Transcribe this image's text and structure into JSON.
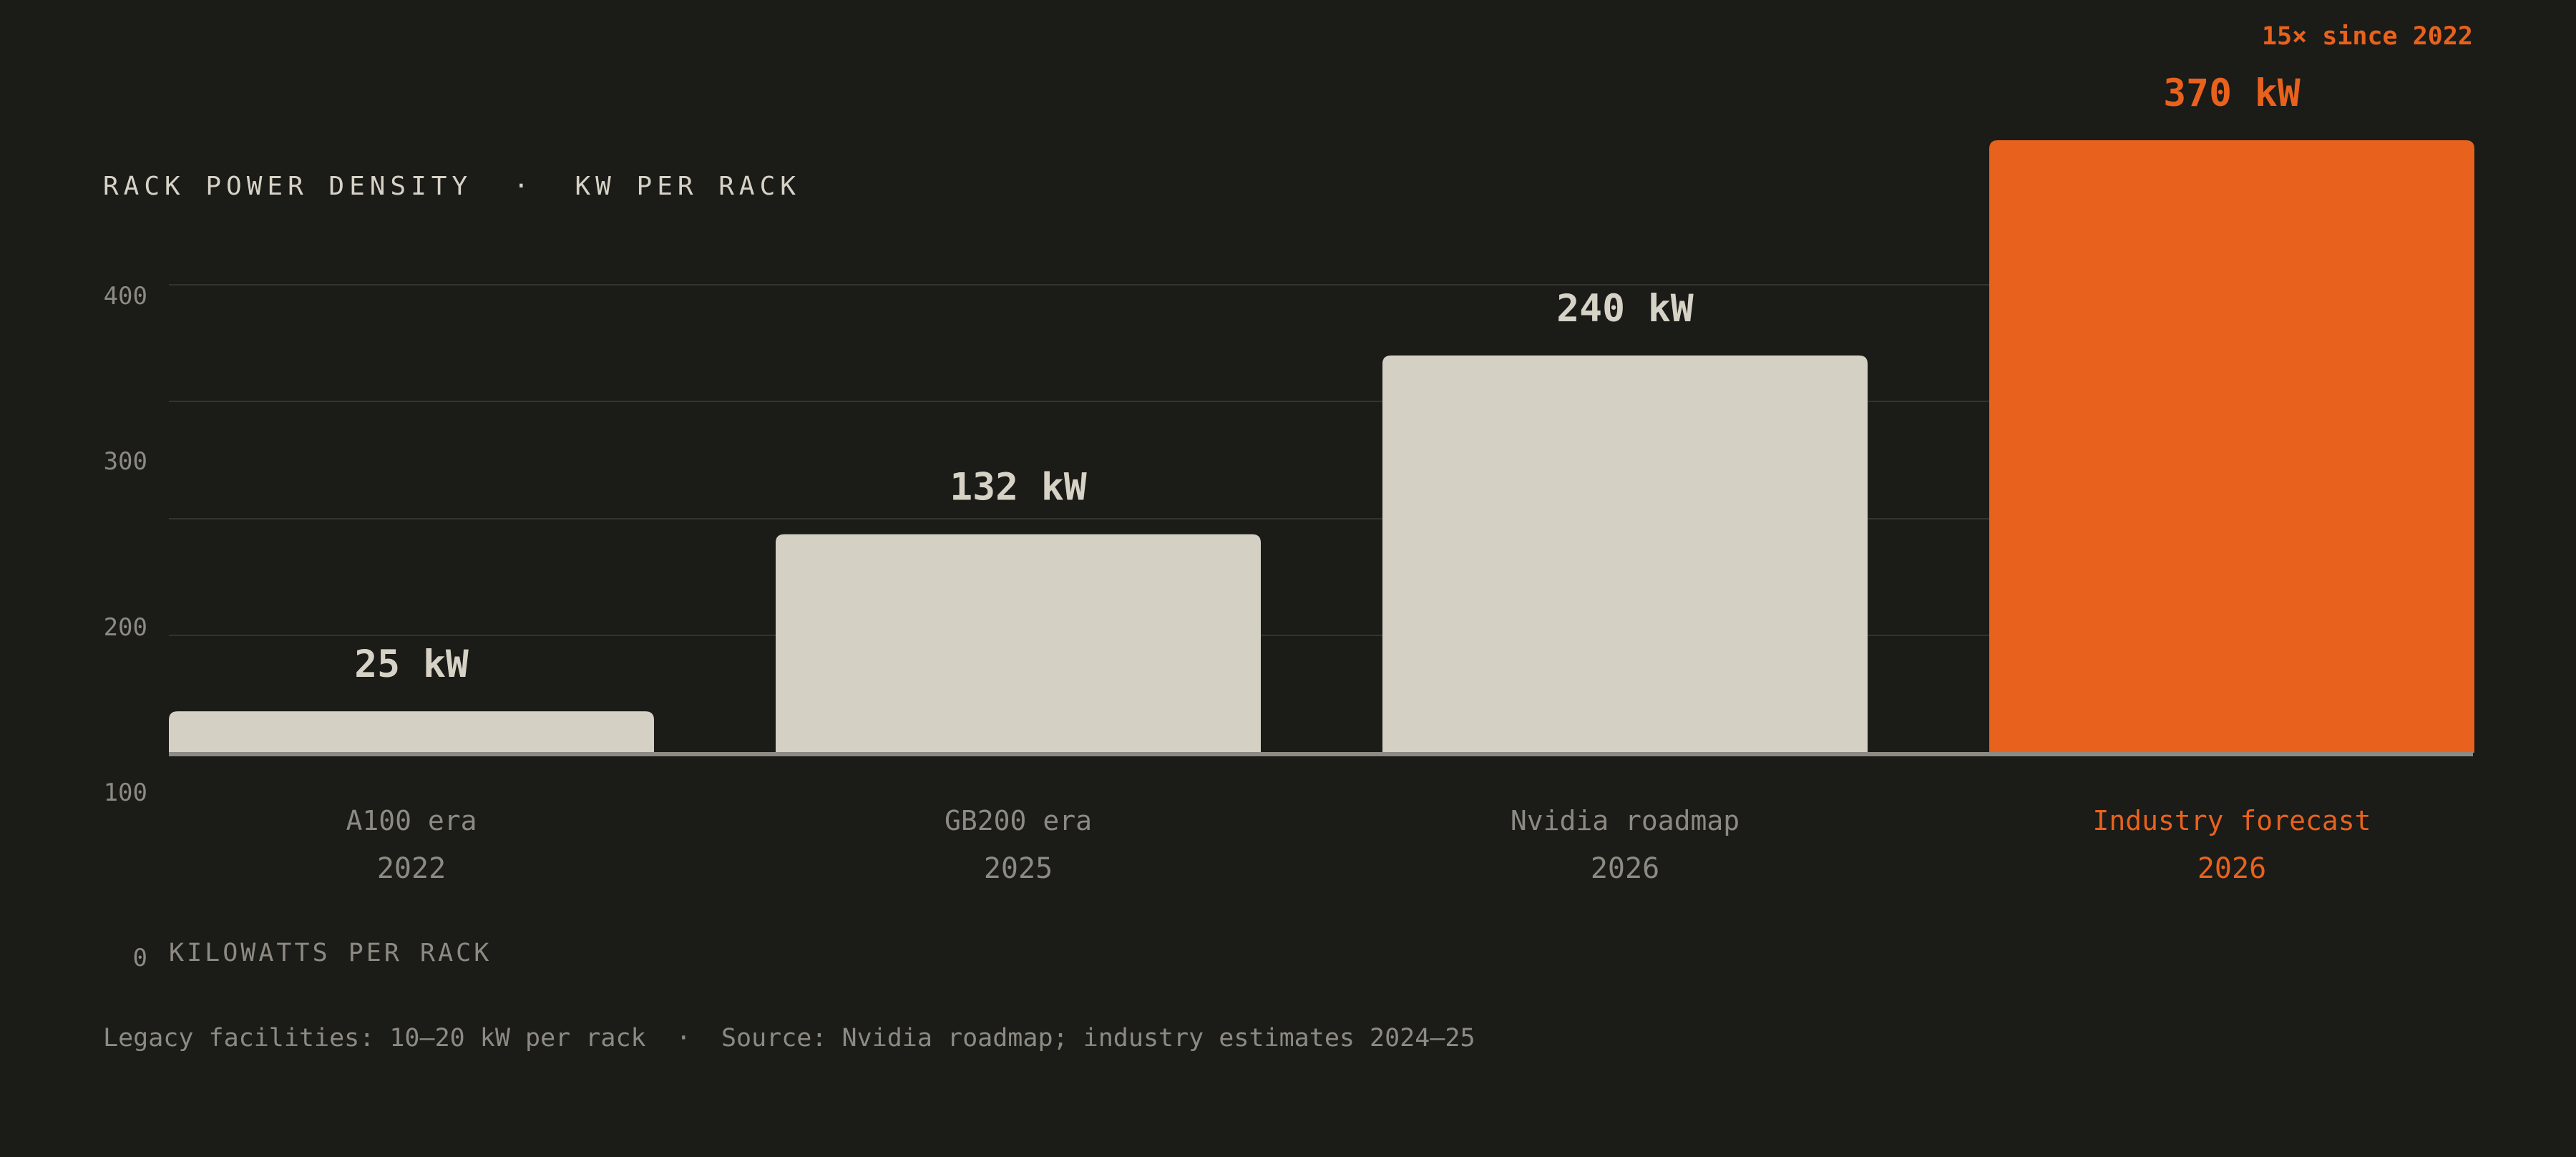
{
  "chart_data": {
    "type": "bar",
    "title": "RACK POWER DENSITY  ·  KW PER RACK",
    "xlabel": "",
    "ylabel": "KILOWATTS PER RACK",
    "yticks": [
      "400",
      "300",
      "200",
      "100",
      "0"
    ],
    "categories": [
      "A100 era",
      "GB200 era",
      "Nvidia roadmap",
      "Industry forecast"
    ],
    "years": [
      "2022",
      "2025",
      "2026",
      "2026"
    ],
    "values": [
      25,
      132,
      240,
      370
    ],
    "value_labels": [
      "25 kW",
      "132 kW",
      "240 kW",
      "370 kW"
    ],
    "highlight_index": 3,
    "callout": "15× since 2022",
    "footnote": "Legacy facilities: 10–20 kW per rack  ·  Source: Nvidia roadmap; industry estimates 2024–25",
    "grid": true,
    "colors": {
      "background": "#1b1b18",
      "bar": "#d4d0c4",
      "highlight": "#e8621d",
      "text_primary": "#d6d2c6",
      "text_muted": "#8c8a82",
      "grid": "#34342f",
      "baseline": "#8c8a82"
    }
  }
}
